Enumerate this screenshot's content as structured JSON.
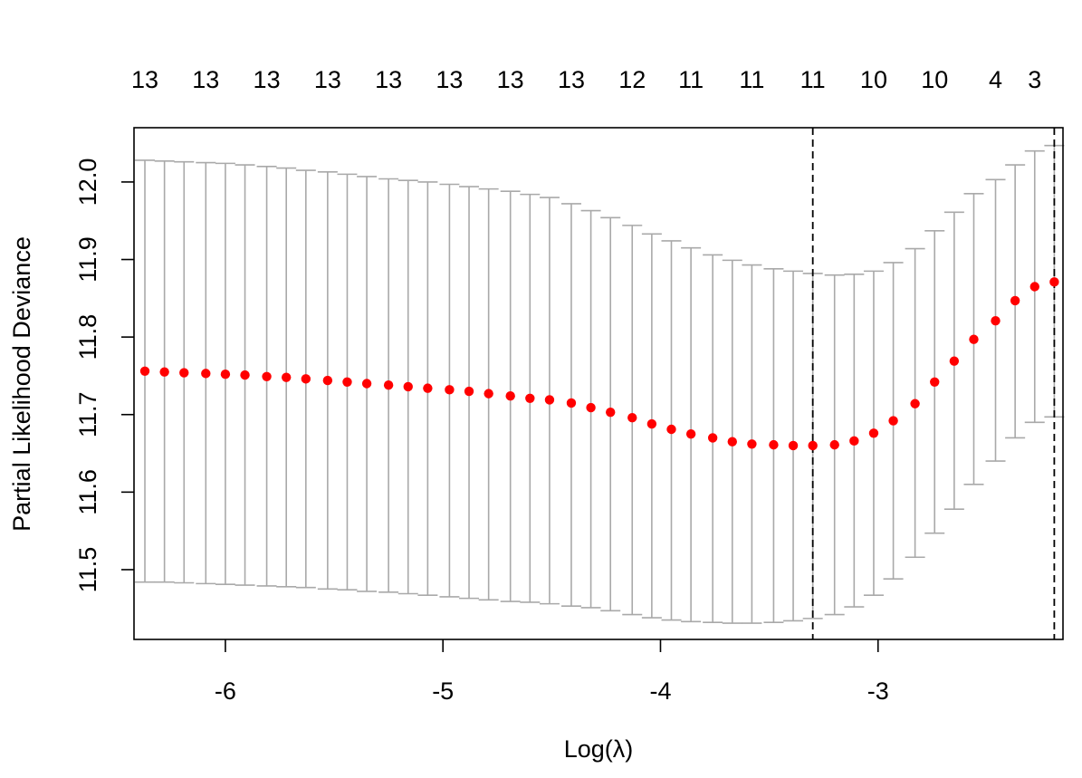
{
  "chart_data": {
    "type": "scatter",
    "xlabel": "Log(λ)",
    "ylabel": "Partial Likelihood Deviance",
    "xlim": [
      -6.42,
      -2.15
    ],
    "ylim": [
      11.41,
      12.07
    ],
    "x_ticks": [
      -6,
      -5,
      -4,
      -3
    ],
    "y_ticks": [
      11.5,
      11.6,
      11.7,
      11.8,
      11.9,
      12.0
    ],
    "x_tick_labels": [
      "-6",
      "-5",
      "-4",
      "-3"
    ],
    "y_tick_labels": [
      "11.5",
      "11.6",
      "11.7",
      "11.8",
      "11.9",
      "12.0"
    ],
    "top_axis": {
      "x": [
        -6.37,
        -6.09,
        -5.81,
        -5.53,
        -5.25,
        -4.97,
        -4.69,
        -4.41,
        -4.13,
        -3.86,
        -3.58,
        -3.3,
        -3.02,
        -2.74,
        -2.46,
        -2.28
      ],
      "labels": [
        "13",
        "13",
        "13",
        "13",
        "13",
        "13",
        "13",
        "13",
        "12",
        "11",
        "11",
        "11",
        "10",
        "10",
        "4",
        "3"
      ]
    },
    "vlines": [
      -3.3,
      -2.19
    ],
    "grid": false,
    "series": [
      {
        "x": [
          -6.37,
          -6.28,
          -6.19,
          -6.09,
          -6.0,
          -5.91,
          -5.81,
          -5.72,
          -5.63,
          -5.53,
          -5.44,
          -5.35,
          -5.25,
          -5.16,
          -5.07,
          -4.97,
          -4.88,
          -4.79,
          -4.69,
          -4.6,
          -4.51,
          -4.41,
          -4.32,
          -4.23,
          -4.13,
          -4.04,
          -3.95,
          -3.86,
          -3.76,
          -3.67,
          -3.58,
          -3.48,
          -3.39,
          -3.3,
          -3.2,
          -3.11,
          -3.02,
          -2.93,
          -2.83,
          -2.74,
          -2.65,
          -2.56,
          -2.46,
          -2.37,
          -2.28,
          -2.19
        ],
        "y": [
          11.756,
          11.755,
          11.754,
          11.753,
          11.752,
          11.751,
          11.749,
          11.748,
          11.746,
          11.744,
          11.742,
          11.74,
          11.738,
          11.736,
          11.734,
          11.732,
          11.73,
          11.727,
          11.724,
          11.721,
          11.719,
          11.715,
          11.709,
          11.703,
          11.696,
          11.688,
          11.681,
          11.675,
          11.67,
          11.665,
          11.662,
          11.661,
          11.66,
          11.66,
          11.661,
          11.666,
          11.676,
          11.692,
          11.714,
          11.742,
          11.769,
          11.797,
          11.821,
          11.847,
          11.865,
          11.871
        ],
        "lower": [
          11.484,
          11.484,
          11.483,
          11.482,
          11.481,
          11.48,
          11.479,
          11.478,
          11.477,
          11.475,
          11.474,
          11.472,
          11.471,
          11.469,
          11.467,
          11.465,
          11.463,
          11.461,
          11.459,
          11.458,
          11.456,
          11.453,
          11.451,
          11.447,
          11.442,
          11.438,
          11.435,
          11.433,
          11.432,
          11.431,
          11.431,
          11.432,
          11.434,
          11.437,
          11.442,
          11.452,
          11.467,
          11.488,
          11.516,
          11.547,
          11.578,
          11.61,
          11.64,
          11.67,
          11.69,
          11.697
        ],
        "upper": [
          12.028,
          12.027,
          12.026,
          12.025,
          12.024,
          12.022,
          12.02,
          12.018,
          12.015,
          12.013,
          12.01,
          12.007,
          12.004,
          12.002,
          12.0,
          11.997,
          11.994,
          11.991,
          11.988,
          11.984,
          11.98,
          11.972,
          11.963,
          11.954,
          11.944,
          11.933,
          11.924,
          11.915,
          11.906,
          11.899,
          11.893,
          11.888,
          11.885,
          11.882,
          11.88,
          11.881,
          11.885,
          11.896,
          11.914,
          11.937,
          11.961,
          11.985,
          12.003,
          12.022,
          12.04,
          12.047
        ]
      }
    ],
    "colors": {
      "points": "#ff0000",
      "error_bars": "#a9a9a9",
      "vlines": "#000000",
      "axes": "#000000"
    }
  }
}
